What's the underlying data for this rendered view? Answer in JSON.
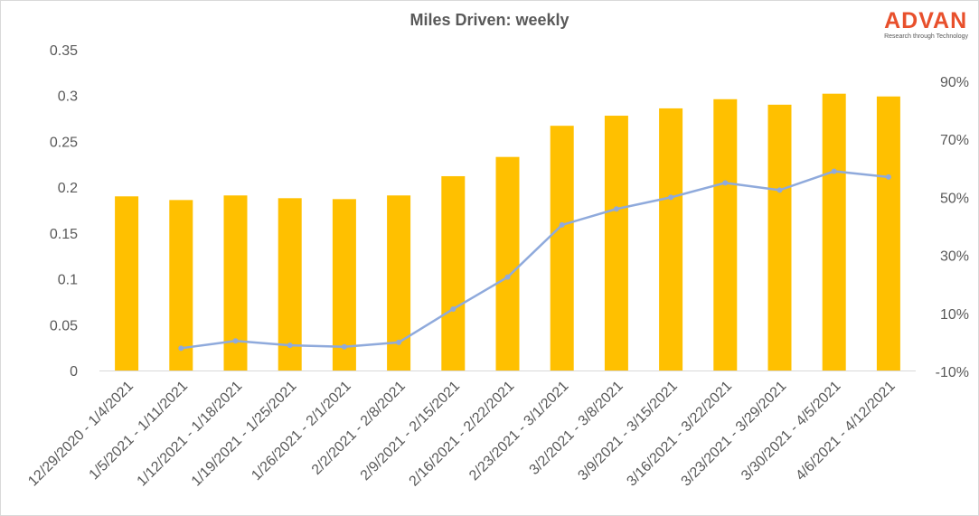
{
  "title": "Miles Driven: weekly",
  "logo": {
    "word": "ADVAN",
    "tagline": "Research through Technology"
  },
  "colors": {
    "bar": "#ffc000",
    "line": "#8faadc",
    "axis": "#d9d9d9",
    "text": "#595959"
  },
  "chart_data": {
    "type": "bar",
    "title": "Miles Driven: weekly",
    "categories": [
      "12/29/2020 - 1/4/2021",
      "1/5/2021 - 1/11/2021",
      "1/12/2021 - 1/18/2021",
      "1/19/2021 - 1/25/2021",
      "1/26/2021 - 2/1/2021",
      "2/2/2021 - 2/8/2021",
      "2/9/2021 - 2/15/2021",
      "2/16/2021 - 2/22/2021",
      "2/23/2021 - 3/1/2021",
      "3/2/2021 - 3/8/2021",
      "3/9/2021 - 3/15/2021",
      "3/16/2021 - 3/22/2021",
      "3/23/2021 - 3/29/2021",
      "3/30/2021 - 4/5/2021",
      "4/6/2021 - 4/12/2021"
    ],
    "series": [
      {
        "type": "bar",
        "axis": "left",
        "values": [
          0.19,
          0.186,
          0.191,
          0.188,
          0.187,
          0.191,
          0.212,
          0.233,
          0.267,
          0.278,
          0.286,
          0.296,
          0.29,
          0.302,
          0.299
        ]
      },
      {
        "type": "line",
        "axis": "right",
        "values": [
          null,
          -2,
          0.5,
          -1,
          -1.5,
          0,
          11.5,
          22.5,
          40.5,
          46,
          50,
          55,
          52.5,
          59,
          57
        ]
      }
    ],
    "left_axis": {
      "min": 0,
      "max": 0.35,
      "ticks": [
        "0",
        "0.05",
        "0.1",
        "0.15",
        "0.2",
        "0.25",
        "0.3",
        "0.35"
      ]
    },
    "right_axis": {
      "min": -10,
      "max": 90,
      "ticks": [
        "-10%",
        "10%",
        "30%",
        "50%",
        "70%",
        "90%"
      ]
    },
    "grid": false,
    "legend": "none"
  }
}
